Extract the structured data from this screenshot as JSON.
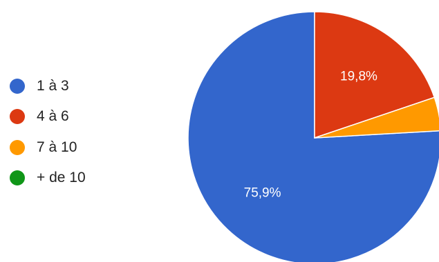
{
  "chart_data": {
    "type": "pie",
    "categories": [
      "1 à 3",
      "4 à 6",
      "7 à 10",
      "+ de 10"
    ],
    "values": [
      75.9,
      19.8,
      4.3,
      0
    ],
    "labels": [
      "75,9%",
      "19,8%",
      "",
      ""
    ],
    "colors": [
      "#3366cc",
      "#dc3912",
      "#ff9900",
      "#109618"
    ],
    "legend_position": "left"
  }
}
